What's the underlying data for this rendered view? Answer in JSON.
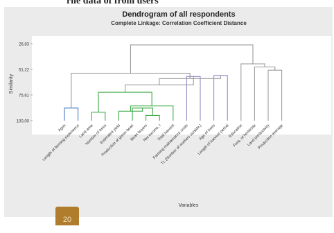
{
  "page": {
    "caption": "rile data of from users",
    "page_number": "20"
  },
  "chart_data": {
    "type": "dendrogram",
    "title": "Dendrogram of all respondents",
    "subtitle": "Complete Linkage: Correlation Coefficient Distance",
    "xlabel": "Variables",
    "ylabel": "Similarity",
    "yticks": [
      "26,83",
      "51,22",
      "75,61",
      "100,00"
    ],
    "ytick_values": [
      26.83,
      51.22,
      75.61,
      100.0
    ],
    "ylim": [
      100.0,
      26.83
    ],
    "leaves": [
      "Ages",
      "Length of farming experience",
      "Land area",
      "Number of trees",
      "Estimated yield",
      "Production of green bean",
      "Bean buyers",
      "Net income, I",
      "Total harvest",
      "Farming maintenance costs",
      "TL (Number of workers outside,)",
      "Age of trees",
      "Length of harvest period",
      "Education",
      "Freq. of herbicide",
      "Land productivity",
      "Production average"
    ],
    "merges": [
      {
        "a": "L0",
        "b": "L1",
        "similarity": 88.0,
        "color": "#4a7bc4"
      },
      {
        "a": "L2",
        "b": "L3",
        "similarity": 92.0,
        "color": "#3aa843"
      },
      {
        "a": "L6",
        "b": "L7",
        "similarity": 95.0,
        "color": "#3aa843"
      },
      {
        "a": "L5",
        "b": "M3",
        "similarity": 88.0,
        "color": "#3aa843"
      },
      {
        "a": "L4",
        "b": "M4",
        "similarity": 91.0,
        "color": "#3aa843"
      },
      {
        "a": "M5",
        "b": "L8",
        "similarity": 86.0,
        "color": "#3aa843"
      },
      {
        "a": "M2",
        "b": "M6",
        "similarity": 73.0,
        "color": "#3aa843"
      },
      {
        "a": "L9",
        "b": "L10",
        "similarity": 58.0,
        "color": "#8f8ac8"
      },
      {
        "a": "L11",
        "b": "L12",
        "similarity": 57.0,
        "color": "#8f8ac8"
      },
      {
        "a": "M7",
        "b": "M8",
        "similarity": 66.0,
        "color": "#9a9a9a"
      },
      {
        "a": "M9",
        "b": "M10",
        "similarity": 60.0,
        "color": "#9a9a9a"
      },
      {
        "a": "M11",
        "b": "M1",
        "similarity": 55.0,
        "color": "#9a9a9a"
      },
      {
        "a": "L15",
        "b": "L16",
        "similarity": 52.0,
        "color": "#9a9a9a"
      },
      {
        "a": "L14",
        "b": "M13",
        "similarity": 49.0,
        "color": "#9a9a9a"
      },
      {
        "a": "L13",
        "b": "M14",
        "similarity": 46.0,
        "color": "#9a9a9a"
      },
      {
        "a": "M12",
        "b": "M15",
        "similarity": 28.0,
        "color": "#9a9a9a"
      }
    ],
    "cluster_colors": {
      "ages_pair": "#4a7bc4",
      "production_cluster": "#3aa843",
      "cost_pair": "#e0a444",
      "tree_age_pair": "#b070b0",
      "education": "#e06a6a",
      "land_prod_pair": "#e09a3a",
      "links": "#9a9a9a"
    },
    "grid": false,
    "legend": "none"
  }
}
